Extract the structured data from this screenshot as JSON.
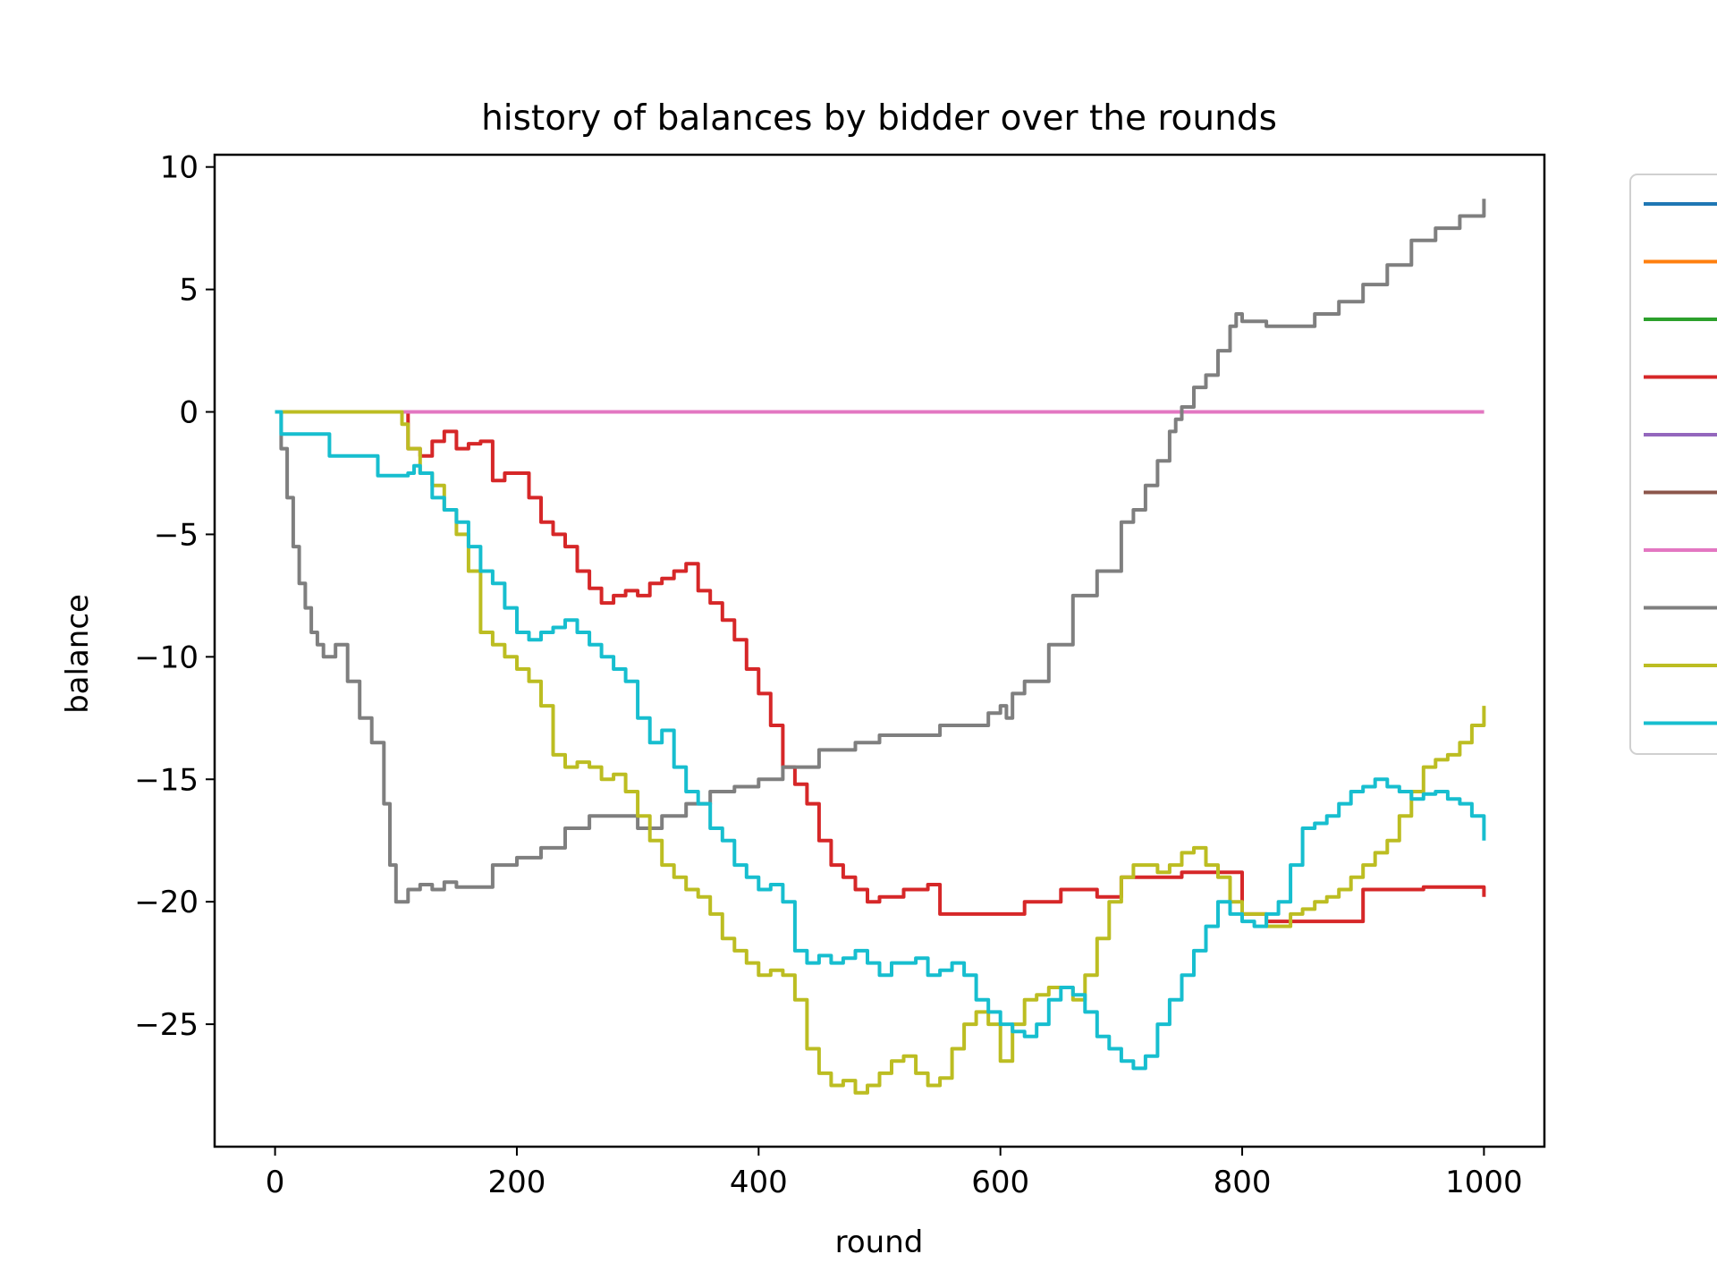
{
  "chart_data": {
    "type": "line",
    "title": "history of balances by bidder over the rounds",
    "xlabel": "round",
    "ylabel": "balance",
    "xlim": [
      -50,
      1050
    ],
    "ylim": [
      -30,
      10.5
    ],
    "xticks": [
      0,
      200,
      400,
      600,
      800,
      1000
    ],
    "yticks": [
      10,
      5,
      0,
      -5,
      -10,
      -15,
      -20,
      -25
    ],
    "xtick_labels": [
      "0",
      "200",
      "400",
      "600",
      "800",
      "1000"
    ],
    "ytick_labels": [
      "10",
      "5",
      "0",
      "−5",
      "−10",
      "−15",
      "−20",
      "−25"
    ],
    "grid": false,
    "legend": "right, clipped (labels not visible)",
    "series": [
      {
        "color": "#1f77b4",
        "x": [
          0,
          1000
        ],
        "y": [
          0,
          0
        ]
      },
      {
        "color": "#ff7f0e",
        "x": [
          0,
          1000
        ],
        "y": [
          0,
          0
        ]
      },
      {
        "color": "#2ca02c",
        "x": [
          0,
          1000
        ],
        "y": [
          0,
          0
        ]
      },
      {
        "color": "#d62728",
        "x": [
          0,
          100,
          110,
          120,
          130,
          140,
          150,
          160,
          170,
          180,
          190,
          200,
          210,
          220,
          230,
          240,
          250,
          260,
          270,
          280,
          290,
          300,
          310,
          320,
          330,
          340,
          350,
          360,
          370,
          380,
          390,
          400,
          410,
          420,
          430,
          440,
          450,
          460,
          470,
          480,
          490,
          500,
          520,
          540,
          550,
          600,
          620,
          650,
          680,
          700,
          750,
          800,
          820,
          850,
          900,
          950,
          1000
        ],
        "y": [
          0,
          0,
          -1.5,
          -1.8,
          -1.2,
          -0.8,
          -1.5,
          -1.3,
          -1.2,
          -2.8,
          -2.5,
          -2.5,
          -3.5,
          -4.5,
          -5.0,
          -5.5,
          -6.5,
          -7.2,
          -7.8,
          -7.5,
          -7.3,
          -7.5,
          -7.0,
          -6.8,
          -6.5,
          -6.2,
          -7.3,
          -7.8,
          -8.5,
          -9.3,
          -10.5,
          -11.5,
          -12.8,
          -14.5,
          -15.2,
          -16.0,
          -17.5,
          -18.5,
          -19.0,
          -19.5,
          -20.0,
          -19.8,
          -19.5,
          -19.3,
          -20.5,
          -20.5,
          -20.0,
          -19.5,
          -19.8,
          -19.0,
          -18.8,
          -20.5,
          -20.8,
          -20.8,
          -19.5,
          -19.4,
          -19.8
        ]
      },
      {
        "color": "#9467bd",
        "x": [
          0,
          1000
        ],
        "y": [
          0,
          0
        ]
      },
      {
        "color": "#8c564b",
        "x": [
          0,
          1000
        ],
        "y": [
          0,
          0
        ]
      },
      {
        "color": "#e377c2",
        "x": [
          0,
          1000
        ],
        "y": [
          0,
          0
        ]
      },
      {
        "color": "#7f7f7f",
        "x": [
          0,
          5,
          10,
          15,
          20,
          25,
          30,
          35,
          40,
          50,
          60,
          70,
          80,
          90,
          95,
          100,
          110,
          120,
          130,
          140,
          150,
          160,
          170,
          180,
          200,
          220,
          240,
          260,
          280,
          300,
          320,
          340,
          360,
          380,
          400,
          420,
          450,
          480,
          500,
          550,
          590,
          600,
          605,
          610,
          620,
          640,
          660,
          680,
          700,
          710,
          720,
          730,
          740,
          745,
          750,
          760,
          770,
          780,
          790,
          795,
          800,
          820,
          840,
          860,
          880,
          900,
          920,
          940,
          960,
          980,
          1000
        ],
        "y": [
          0,
          -1.5,
          -3.5,
          -5.5,
          -7.0,
          -8.0,
          -9.0,
          -9.5,
          -10.0,
          -9.5,
          -11.0,
          -12.5,
          -13.5,
          -16.0,
          -18.5,
          -20.0,
          -19.5,
          -19.3,
          -19.5,
          -19.2,
          -19.4,
          -19.4,
          -19.4,
          -18.5,
          -18.2,
          -17.8,
          -17.0,
          -16.5,
          -16.5,
          -17.0,
          -16.5,
          -16.0,
          -15.5,
          -15.3,
          -15.0,
          -14.5,
          -13.8,
          -13.5,
          -13.2,
          -12.8,
          -12.3,
          -12.0,
          -12.5,
          -11.5,
          -11.0,
          -9.5,
          -7.5,
          -6.5,
          -4.5,
          -4.0,
          -3.0,
          -2.0,
          -0.8,
          -0.3,
          0.2,
          1.0,
          1.5,
          2.5,
          3.5,
          4.0,
          3.7,
          3.5,
          3.5,
          4.0,
          4.5,
          5.2,
          6.0,
          7.0,
          7.5,
          8.0,
          8.7
        ]
      },
      {
        "color": "#bcbd22",
        "x": [
          0,
          100,
          105,
          110,
          120,
          130,
          140,
          150,
          160,
          170,
          180,
          190,
          200,
          210,
          220,
          230,
          240,
          250,
          260,
          270,
          280,
          290,
          300,
          310,
          320,
          330,
          340,
          350,
          360,
          370,
          380,
          390,
          400,
          410,
          420,
          430,
          440,
          450,
          460,
          470,
          480,
          490,
          500,
          510,
          520,
          530,
          540,
          550,
          560,
          570,
          580,
          590,
          600,
          610,
          620,
          630,
          640,
          650,
          660,
          670,
          680,
          690,
          700,
          710,
          720,
          730,
          740,
          750,
          760,
          770,
          780,
          790,
          800,
          810,
          820,
          830,
          840,
          850,
          860,
          870,
          880,
          890,
          900,
          910,
          920,
          930,
          940,
          950,
          960,
          970,
          980,
          990,
          1000
        ],
        "y": [
          0,
          0,
          -0.5,
          -1.5,
          -2.5,
          -3.0,
          -4.0,
          -5.0,
          -6.5,
          -9.0,
          -9.5,
          -10.0,
          -10.5,
          -11.0,
          -12.0,
          -14.0,
          -14.5,
          -14.3,
          -14.5,
          -15.0,
          -14.8,
          -15.5,
          -16.5,
          -17.5,
          -18.5,
          -19.0,
          -19.5,
          -19.8,
          -20.5,
          -21.5,
          -22.0,
          -22.5,
          -23.0,
          -22.8,
          -23.0,
          -24.0,
          -26.0,
          -27.0,
          -27.5,
          -27.3,
          -27.8,
          -27.5,
          -27.0,
          -26.5,
          -26.3,
          -27.0,
          -27.5,
          -27.2,
          -26.0,
          -25.0,
          -24.5,
          -25.0,
          -26.5,
          -25.0,
          -24.0,
          -23.8,
          -23.5,
          -23.5,
          -24.0,
          -23.0,
          -21.5,
          -20.0,
          -19.0,
          -18.5,
          -18.5,
          -18.8,
          -18.5,
          -18.0,
          -17.8,
          -18.5,
          -19.0,
          -20.0,
          -20.5,
          -20.5,
          -21.0,
          -21.0,
          -20.5,
          -20.3,
          -20.0,
          -19.8,
          -19.5,
          -19.0,
          -18.5,
          -18.0,
          -17.5,
          -16.5,
          -15.5,
          -14.5,
          -14.2,
          -14.0,
          -13.5,
          -12.8,
          -12.0
        ]
      },
      {
        "color": "#17becf",
        "x": [
          0,
          5,
          40,
          45,
          80,
          85,
          110,
          115,
          120,
          130,
          140,
          150,
          160,
          170,
          180,
          190,
          200,
          210,
          220,
          230,
          240,
          250,
          260,
          270,
          280,
          290,
          300,
          310,
          320,
          330,
          340,
          350,
          360,
          370,
          380,
          390,
          400,
          410,
          420,
          430,
          440,
          450,
          460,
          470,
          480,
          490,
          500,
          510,
          520,
          530,
          540,
          550,
          560,
          570,
          580,
          590,
          600,
          610,
          620,
          630,
          640,
          650,
          660,
          670,
          680,
          690,
          700,
          710,
          720,
          730,
          740,
          750,
          760,
          770,
          780,
          790,
          800,
          810,
          820,
          830,
          840,
          850,
          860,
          870,
          880,
          890,
          900,
          910,
          920,
          930,
          940,
          950,
          960,
          970,
          980,
          990,
          1000
        ],
        "y": [
          0,
          -0.9,
          -0.9,
          -1.8,
          -1.8,
          -2.6,
          -2.5,
          -2.2,
          -2.5,
          -3.5,
          -4.0,
          -4.5,
          -5.5,
          -6.5,
          -7.0,
          -8.0,
          -9.0,
          -9.3,
          -9.0,
          -8.8,
          -8.5,
          -9.0,
          -9.5,
          -10.0,
          -10.5,
          -11.0,
          -12.5,
          -13.5,
          -13.0,
          -14.5,
          -15.5,
          -16.0,
          -17.0,
          -17.5,
          -18.5,
          -19.0,
          -19.5,
          -19.3,
          -20.0,
          -22.0,
          -22.5,
          -22.2,
          -22.5,
          -22.3,
          -22.0,
          -22.5,
          -23.0,
          -22.5,
          -22.5,
          -22.3,
          -23.0,
          -22.8,
          -22.5,
          -23.0,
          -24.0,
          -24.5,
          -25.0,
          -25.3,
          -25.5,
          -25.0,
          -24.0,
          -23.5,
          -23.8,
          -24.5,
          -25.5,
          -26.0,
          -26.5,
          -26.8,
          -26.3,
          -25.0,
          -24.0,
          -23.0,
          -22.0,
          -21.0,
          -20.0,
          -20.5,
          -20.8,
          -21.0,
          -20.5,
          -20.0,
          -18.5,
          -17.0,
          -16.8,
          -16.5,
          -16.0,
          -15.5,
          -15.3,
          -15.0,
          -15.3,
          -15.5,
          -15.8,
          -15.6,
          -15.5,
          -15.8,
          -16.0,
          -16.5,
          -17.5
        ]
      }
    ]
  }
}
